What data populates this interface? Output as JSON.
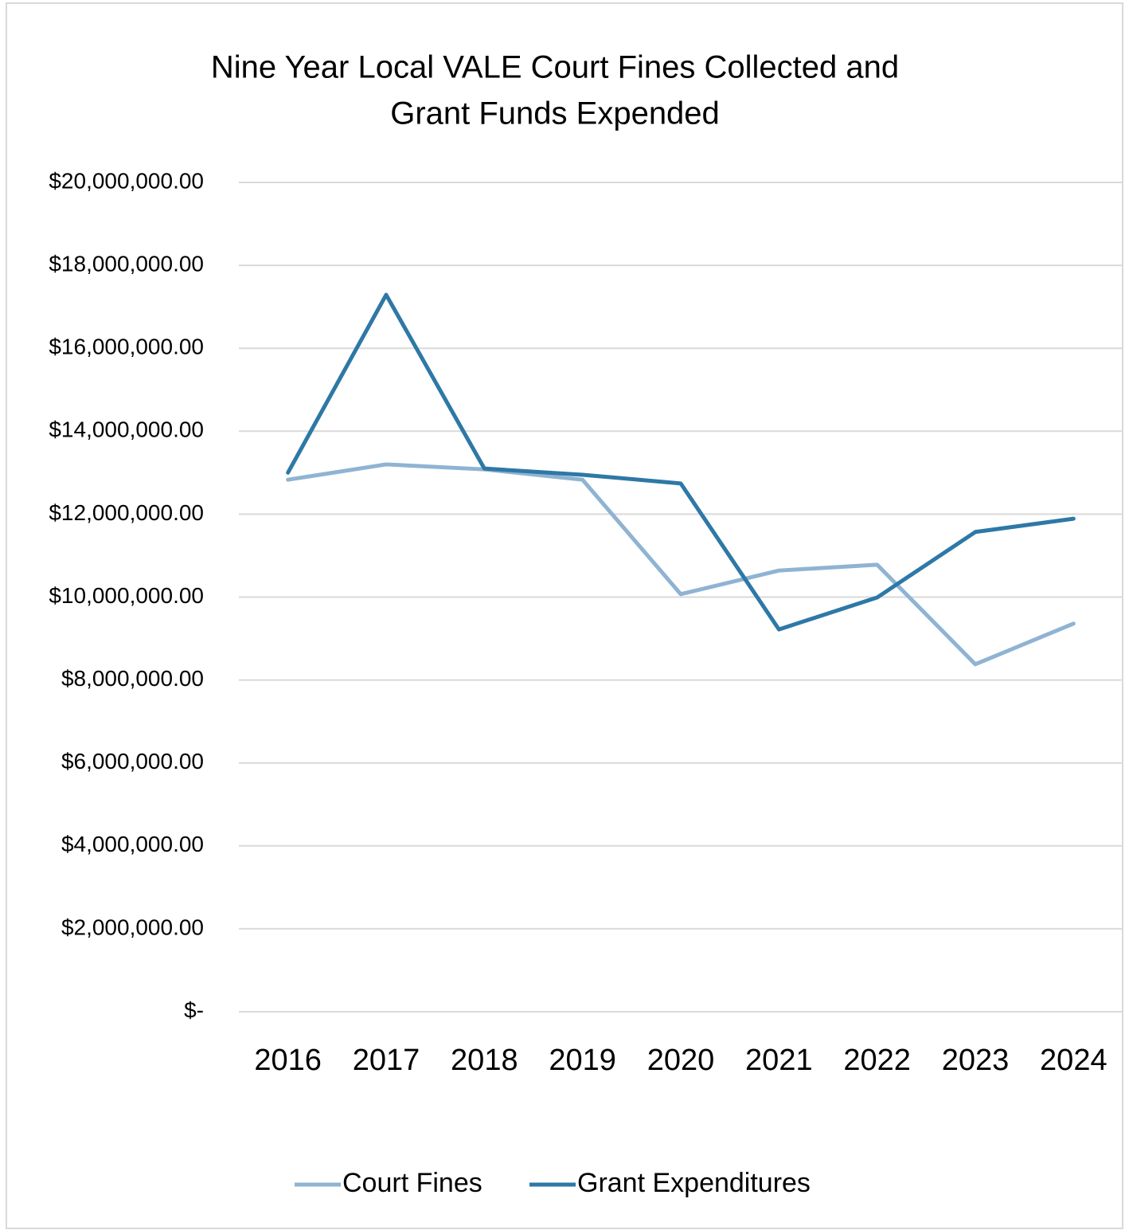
{
  "chart_data": {
    "type": "line",
    "title": [
      "Nine Year Local VALE Court Fines Collected and",
      "Grant Funds Expended"
    ],
    "categories": [
      "2016",
      "2017",
      "2018",
      "2019",
      "2020",
      "2021",
      "2022",
      "2023",
      "2024"
    ],
    "series": [
      {
        "name": "Court Fines",
        "color": "#8fb3d3",
        "values": [
          12830000,
          13200000,
          13080000,
          12830000,
          10070000,
          10640000,
          10780000,
          8380000,
          9360000
        ]
      },
      {
        "name": "Grant Expenditures",
        "color": "#2e78a6",
        "values": [
          13000000,
          17290000,
          13100000,
          12950000,
          12740000,
          9220000,
          9990000,
          11570000,
          11890000
        ]
      }
    ],
    "ylim": [
      0,
      20000000
    ],
    "yticks": [
      {
        "value": 0,
        "label": "$-"
      },
      {
        "value": 2000000,
        "label": "$2,000,000.00"
      },
      {
        "value": 4000000,
        "label": "$4,000,000.00"
      },
      {
        "value": 6000000,
        "label": "$6,000,000.00"
      },
      {
        "value": 8000000,
        "label": "$8,000,000.00"
      },
      {
        "value": 10000000,
        "label": "$10,000,000.00"
      },
      {
        "value": 12000000,
        "label": "$12,000,000.00"
      },
      {
        "value": 14000000,
        "label": "$14,000,000.00"
      },
      {
        "value": 16000000,
        "label": "$16,000,000.00"
      },
      {
        "value": 18000000,
        "label": "$18,000,000.00"
      },
      {
        "value": 20000000,
        "label": "$20,000,000.00"
      }
    ],
    "grid": true,
    "legend": "bottom"
  }
}
